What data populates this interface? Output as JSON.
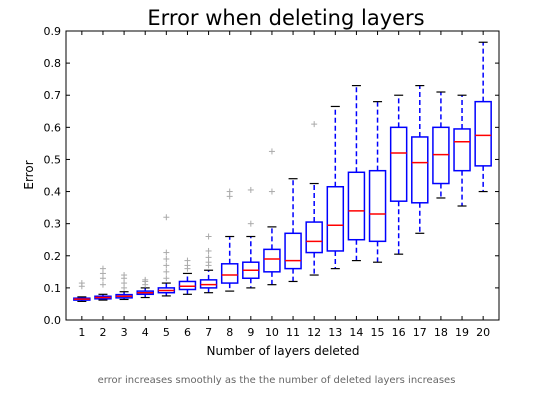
{
  "chart_data": {
    "type": "box",
    "title": "Error when deleting layers",
    "xlabel": "Number of layers deleted",
    "ylabel": "Error",
    "categories": [
      "1",
      "2",
      "3",
      "4",
      "5",
      "6",
      "7",
      "8",
      "9",
      "10",
      "11",
      "12",
      "13",
      "14",
      "15",
      "16",
      "17",
      "18",
      "19",
      "20"
    ],
    "yticks": [
      "0.0",
      "0.1",
      "0.2",
      "0.3",
      "0.4",
      "0.5",
      "0.6",
      "0.7",
      "0.8",
      "0.9"
    ],
    "ylim": [
      0.0,
      0.9
    ],
    "grid": false,
    "colors": {
      "box": "#0000ff",
      "median": "#ff0000",
      "whisker": "#0000ff",
      "flier": "#aaaaaa"
    },
    "boxes": [
      {
        "min": 0.058,
        "q1": 0.062,
        "median": 0.065,
        "q3": 0.068,
        "max": 0.072,
        "fliers": [
          0.105,
          0.115
        ]
      },
      {
        "min": 0.062,
        "q1": 0.066,
        "median": 0.07,
        "q3": 0.074,
        "max": 0.08,
        "fliers": [
          0.11,
          0.13,
          0.145,
          0.16
        ]
      },
      {
        "min": 0.064,
        "q1": 0.069,
        "median": 0.074,
        "q3": 0.079,
        "max": 0.088,
        "fliers": [
          0.1,
          0.115,
          0.13,
          0.14
        ]
      },
      {
        "min": 0.07,
        "q1": 0.08,
        "median": 0.085,
        "q3": 0.09,
        "max": 0.1,
        "fliers": [
          0.11,
          0.12,
          0.125
        ]
      },
      {
        "min": 0.075,
        "q1": 0.085,
        "median": 0.092,
        "q3": 0.1,
        "max": 0.115,
        "fliers": [
          0.13,
          0.15,
          0.17,
          0.19,
          0.21,
          0.32
        ]
      },
      {
        "min": 0.08,
        "q1": 0.095,
        "median": 0.105,
        "q3": 0.12,
        "max": 0.145,
        "fliers": [
          0.16,
          0.17,
          0.185
        ]
      },
      {
        "min": 0.085,
        "q1": 0.1,
        "median": 0.11,
        "q3": 0.125,
        "max": 0.155,
        "fliers": [
          0.17,
          0.18,
          0.195,
          0.215,
          0.26
        ]
      },
      {
        "min": 0.09,
        "q1": 0.115,
        "median": 0.14,
        "q3": 0.175,
        "max": 0.26,
        "fliers": [
          0.385,
          0.4
        ]
      },
      {
        "min": 0.1,
        "q1": 0.13,
        "median": 0.155,
        "q3": 0.18,
        "max": 0.26,
        "fliers": [
          0.3,
          0.405
        ]
      },
      {
        "min": 0.11,
        "q1": 0.15,
        "median": 0.19,
        "q3": 0.22,
        "max": 0.29,
        "fliers": [
          0.4,
          0.525
        ]
      },
      {
        "min": 0.12,
        "q1": 0.16,
        "median": 0.185,
        "q3": 0.27,
        "max": 0.44,
        "fliers": []
      },
      {
        "min": 0.14,
        "q1": 0.21,
        "median": 0.245,
        "q3": 0.305,
        "max": 0.425,
        "fliers": [
          0.61
        ]
      },
      {
        "min": 0.16,
        "q1": 0.215,
        "median": 0.295,
        "q3": 0.415,
        "max": 0.665,
        "fliers": []
      },
      {
        "min": 0.185,
        "q1": 0.25,
        "median": 0.34,
        "q3": 0.46,
        "max": 0.73,
        "fliers": []
      },
      {
        "min": 0.18,
        "q1": 0.245,
        "median": 0.33,
        "q3": 0.465,
        "max": 0.68,
        "fliers": []
      },
      {
        "min": 0.205,
        "q1": 0.37,
        "median": 0.52,
        "q3": 0.6,
        "max": 0.7,
        "fliers": []
      },
      {
        "min": 0.27,
        "q1": 0.365,
        "median": 0.49,
        "q3": 0.57,
        "max": 0.73,
        "fliers": []
      },
      {
        "min": 0.38,
        "q1": 0.425,
        "median": 0.515,
        "q3": 0.6,
        "max": 0.71,
        "fliers": []
      },
      {
        "min": 0.355,
        "q1": 0.465,
        "median": 0.555,
        "q3": 0.595,
        "max": 0.7,
        "fliers": []
      },
      {
        "min": 0.4,
        "q1": 0.48,
        "median": 0.575,
        "q3": 0.68,
        "max": 0.865,
        "fliers": []
      }
    ],
    "caption": "error increases smoothly as the the number of deleted layers increases"
  }
}
